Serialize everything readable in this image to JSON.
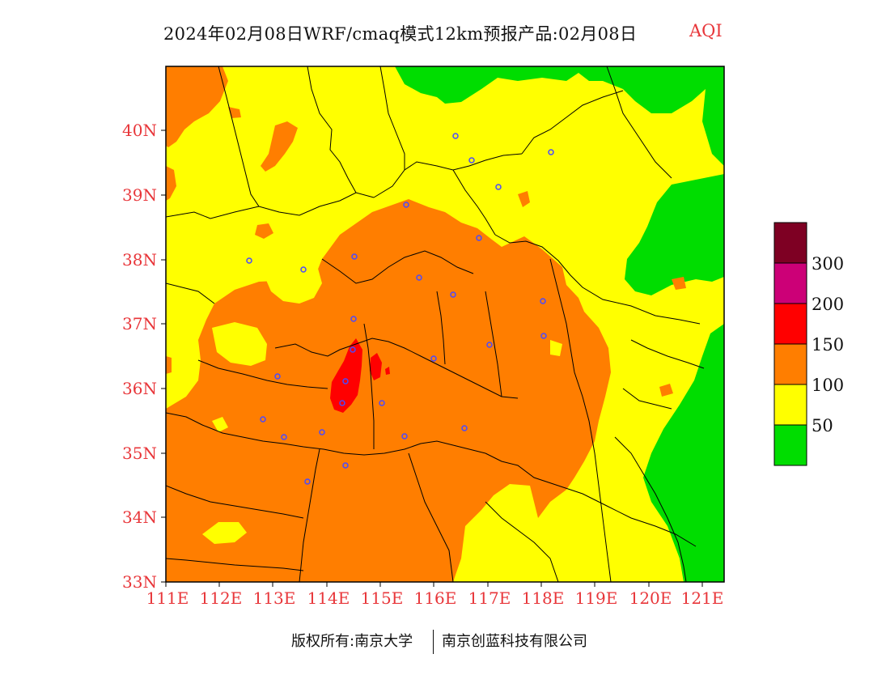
{
  "header": {
    "title": "2024年02月08日WRF/cmaq模式12km预报产品:02月08日",
    "product": "AQI"
  },
  "axes": {
    "y_labels": [
      "40N",
      "39N",
      "38N",
      "37N",
      "36N",
      "35N",
      "34N",
      "33N"
    ],
    "x_labels": [
      "111E",
      "112E",
      "113E",
      "114E",
      "115E",
      "116E",
      "117E",
      "118E",
      "119E",
      "120E",
      "121E"
    ]
  },
  "legend": {
    "levels": [
      {
        "color": "#00dd00"
      },
      {
        "color": "#ffff00"
      },
      {
        "color": "#ff7e00"
      },
      {
        "color": "#ff0000"
      },
      {
        "color": "#cc0077"
      },
      {
        "color": "#7e0023"
      }
    ],
    "labels": [
      "300",
      "200",
      "150",
      "100",
      "50"
    ]
  },
  "footer": {
    "copyright": "版权所有:南京大学",
    "company": "南京创蓝科技有限公司"
  },
  "colors": {
    "good": "#00dd00",
    "moderate": "#ffff00",
    "sensitive": "#ff7e00",
    "unhealthy": "#ff0000",
    "very_unhealthy": "#cc0077",
    "hazardous": "#7e0023",
    "axis_text": "#e8363a",
    "station": "#4a4aff"
  }
}
